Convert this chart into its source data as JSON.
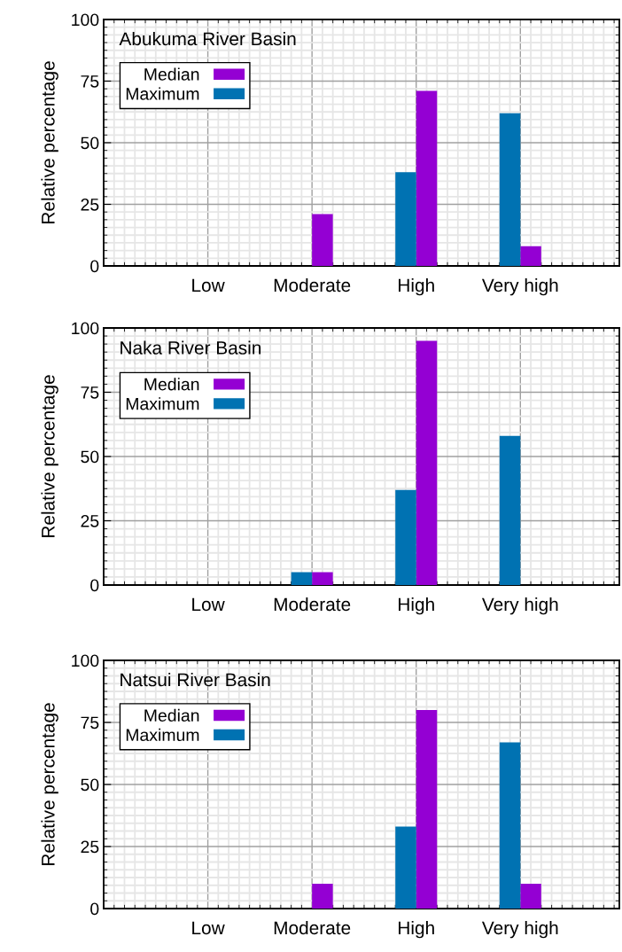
{
  "chart_data": [
    {
      "type": "bar",
      "title": "Abukuma River Basin",
      "ylabel": "Relative percentage",
      "categories": [
        "Low",
        "Moderate",
        "High",
        "Very high"
      ],
      "series": [
        {
          "name": "Median",
          "color": "#9400d3",
          "values": [
            0,
            21,
            71,
            8
          ]
        },
        {
          "name": "Maximum",
          "color": "#0072b2",
          "values": [
            0,
            0,
            38,
            62
          ]
        }
      ],
      "ylim": [
        0,
        100
      ],
      "yticks": [
        0,
        25,
        50,
        75,
        100
      ],
      "grid": true,
      "legend": "top left"
    },
    {
      "type": "bar",
      "title": "Naka River Basin",
      "ylabel": "Relative percentage",
      "categories": [
        "Low",
        "Moderate",
        "High",
        "Very high"
      ],
      "series": [
        {
          "name": "Median",
          "color": "#9400d3",
          "values": [
            0,
            5,
            95,
            0
          ]
        },
        {
          "name": "Maximum",
          "color": "#0072b2",
          "values": [
            0,
            5,
            37,
            58
          ]
        }
      ],
      "ylim": [
        0,
        100
      ],
      "yticks": [
        0,
        25,
        50,
        75,
        100
      ],
      "grid": true,
      "legend": "top left"
    },
    {
      "type": "bar",
      "title": "Natsui River Basin",
      "ylabel": "Relative percentage",
      "categories": [
        "Low",
        "Moderate",
        "High",
        "Very high"
      ],
      "series": [
        {
          "name": "Median",
          "color": "#9400d3",
          "values": [
            0,
            10,
            80,
            10
          ]
        },
        {
          "name": "Maximum",
          "color": "#0072b2",
          "values": [
            0,
            0,
            33,
            67
          ]
        }
      ],
      "ylim": [
        0,
        100
      ],
      "yticks": [
        0,
        25,
        50,
        75,
        100
      ],
      "grid": true,
      "legend": "top left"
    }
  ]
}
